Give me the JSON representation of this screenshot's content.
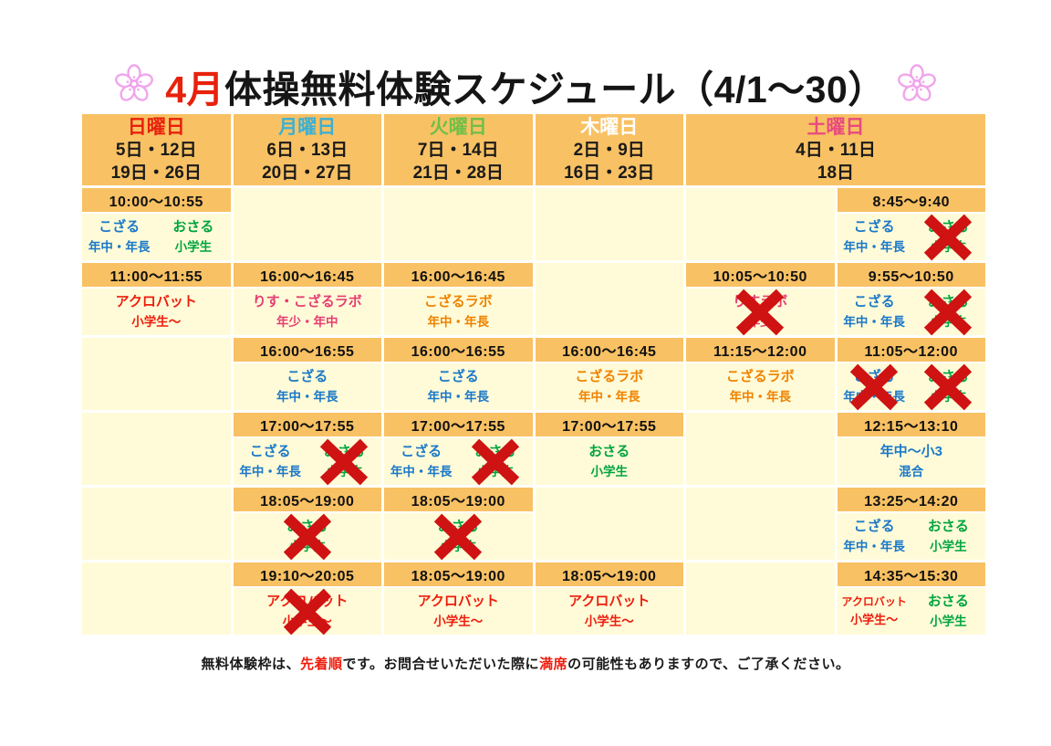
{
  "title": {
    "month": "4月",
    "text": "体操無料体験スケジュール（4/1～30）"
  },
  "icons": {
    "left": "sakura-flower",
    "right": "sakura-flower"
  },
  "palette": {
    "band": "#f8c163",
    "cell": "#fffbd8",
    "gap": "#ffffff",
    "title_month": "#e8210c",
    "flower": "#f0a5ec",
    "x_mark": "#cf1212",
    "footer_red": "#ee1c0c"
  },
  "class_colors": {
    "kozaru": "#1a78c8",
    "osaru": "#00a53f",
    "acrobat": "#ee1c0c",
    "risu": "#e63d72",
    "labo": "#ef8200",
    "mixed": "#1a78c8"
  },
  "header": {
    "days": [
      {
        "label": "日曜日",
        "dates": [
          "5日・12日",
          "19日・26日"
        ],
        "color": "#e8210c",
        "span": 1
      },
      {
        "label": "月曜日",
        "dates": [
          "6日・13日",
          "20日・27日"
        ],
        "color": "#3cb0d4",
        "span": 1
      },
      {
        "label": "火曜日",
        "dates": [
          "7日・14日",
          "21日・28日"
        ],
        "color": "#6fbf48",
        "span": 1
      },
      {
        "label": "木曜日",
        "dates": [
          "2日・9日",
          "16日・23日"
        ],
        "color": "#ffffff",
        "span": 1
      },
      {
        "label": "土曜日",
        "dates": [
          "4日・11日",
          "18日"
        ],
        "color": "#e84a80",
        "span": 2
      }
    ]
  },
  "slots": [
    {
      "cells": [
        {
          "time": "10:00～10:55",
          "classes": [
            {
              "name": "こざる",
              "target": "年中・年長",
              "color": "kozaru",
              "crossed": false
            },
            {
              "name": "おさる",
              "target": "小学生",
              "color": "osaru",
              "crossed": false
            }
          ]
        },
        null,
        null,
        null,
        null,
        {
          "time": "8:45～9:40",
          "classes": [
            {
              "name": "こざる",
              "target": "年中・年長",
              "color": "kozaru",
              "crossed": false
            },
            {
              "name": "おさる",
              "target": "小学生",
              "color": "osaru",
              "crossed": true
            }
          ]
        }
      ]
    },
    {
      "cells": [
        {
          "time": "11:00～11:55",
          "classes": [
            {
              "name": "アクロバット",
              "target": "小学生～",
              "color": "acrobat",
              "crossed": false
            }
          ]
        },
        {
          "time": "16:00～16:45",
          "classes": [
            {
              "name": "りす・こざるラボ",
              "target": "年少・年中",
              "color": "risu",
              "crossed": false
            }
          ]
        },
        {
          "time": "16:00～16:45",
          "classes": [
            {
              "name": "こざるラボ",
              "target": "年中・年長",
              "color": "labo",
              "crossed": false
            }
          ]
        },
        null,
        {
          "time": "10:05～10:50",
          "classes": [
            {
              "name": "りすラボ",
              "target": "年少",
              "color": "risu",
              "crossed": true
            }
          ]
        },
        {
          "time": "9:55～10:50",
          "classes": [
            {
              "name": "こざる",
              "target": "年中・年長",
              "color": "kozaru",
              "crossed": false
            },
            {
              "name": "おさる",
              "target": "小学生",
              "color": "osaru",
              "crossed": true
            }
          ]
        }
      ]
    },
    {
      "cells": [
        null,
        {
          "time": "16:00～16:55",
          "classes": [
            {
              "name": "こざる",
              "target": "年中・年長",
              "color": "kozaru",
              "crossed": false
            }
          ]
        },
        {
          "time": "16:00～16:55",
          "classes": [
            {
              "name": "こざる",
              "target": "年中・年長",
              "color": "kozaru",
              "crossed": false
            }
          ]
        },
        {
          "time": "16:00～16:45",
          "classes": [
            {
              "name": "こざるラボ",
              "target": "年中・年長",
              "color": "labo",
              "crossed": false
            }
          ]
        },
        {
          "time": "11:15～12:00",
          "classes": [
            {
              "name": "こざるラボ",
              "target": "年中・年長",
              "color": "labo",
              "crossed": false
            }
          ]
        },
        {
          "time": "11:05～12:00",
          "classes": [
            {
              "name": "こざる",
              "target": "年中・年長",
              "color": "kozaru",
              "crossed": true
            },
            {
              "name": "おさる",
              "target": "小学生",
              "color": "osaru",
              "crossed": true
            }
          ]
        }
      ]
    },
    {
      "cells": [
        null,
        {
          "time": "17:00～17:55",
          "classes": [
            {
              "name": "こざる",
              "target": "年中・年長",
              "color": "kozaru",
              "crossed": false
            },
            {
              "name": "おさる",
              "target": "小学生",
              "color": "osaru",
              "crossed": true
            }
          ]
        },
        {
          "time": "17:00～17:55",
          "classes": [
            {
              "name": "こざる",
              "target": "年中・年長",
              "color": "kozaru",
              "crossed": false
            },
            {
              "name": "おさる",
              "target": "小学生",
              "color": "osaru",
              "crossed": true
            }
          ]
        },
        {
          "time": "17:00～17:55",
          "classes": [
            {
              "name": "おさる",
              "target": "小学生",
              "color": "osaru",
              "crossed": false
            }
          ]
        },
        null,
        {
          "time": "12:15～13:10",
          "classes": [
            {
              "name": "年中～小3",
              "target": "混合",
              "color": "mixed",
              "crossed": false
            }
          ]
        }
      ]
    },
    {
      "cells": [
        null,
        {
          "time": "18:05～19:00",
          "classes": [
            {
              "name": "おさる",
              "target": "小学生",
              "color": "osaru",
              "crossed": true
            }
          ]
        },
        {
          "time": "18:05～19:00",
          "classes": [
            {
              "name": "おさる",
              "target": "小学生",
              "color": "osaru",
              "crossed": true
            }
          ]
        },
        null,
        null,
        {
          "time": "13:25～14:20",
          "classes": [
            {
              "name": "こざる",
              "target": "年中・年長",
              "color": "kozaru",
              "crossed": false
            },
            {
              "name": "おさる",
              "target": "小学生",
              "color": "osaru",
              "crossed": false
            }
          ]
        }
      ]
    },
    {
      "cells": [
        null,
        {
          "time": "19:10～20:05",
          "classes": [
            {
              "name": "アクロバット",
              "target": "小学生～",
              "color": "acrobat",
              "crossed": true
            }
          ]
        },
        {
          "time": "18:05～19:00",
          "classes": [
            {
              "name": "アクロバット",
              "target": "小学生～",
              "color": "acrobat",
              "crossed": false
            }
          ]
        },
        {
          "time": "18:05～19:00",
          "classes": [
            {
              "name": "アクロバット",
              "target": "小学生～",
              "color": "acrobat",
              "crossed": false
            }
          ]
        },
        null,
        {
          "time": "14:35～15:30",
          "classes": [
            {
              "name": "アクロバット",
              "target": "小学生～",
              "color": "acrobat",
              "crossed": false,
              "small": true
            },
            {
              "name": "おさる",
              "target": "小学生",
              "color": "osaru",
              "crossed": false
            }
          ]
        }
      ]
    }
  ],
  "footer": {
    "segments": [
      {
        "text": "無料体験枠は、",
        "red": false
      },
      {
        "text": "先着順",
        "red": true
      },
      {
        "text": "です。お問合せいただいた際に",
        "red": false
      },
      {
        "text": "満席",
        "red": true
      },
      {
        "text": "の可能性もありますので、ご了承ください。",
        "red": false
      }
    ]
  }
}
